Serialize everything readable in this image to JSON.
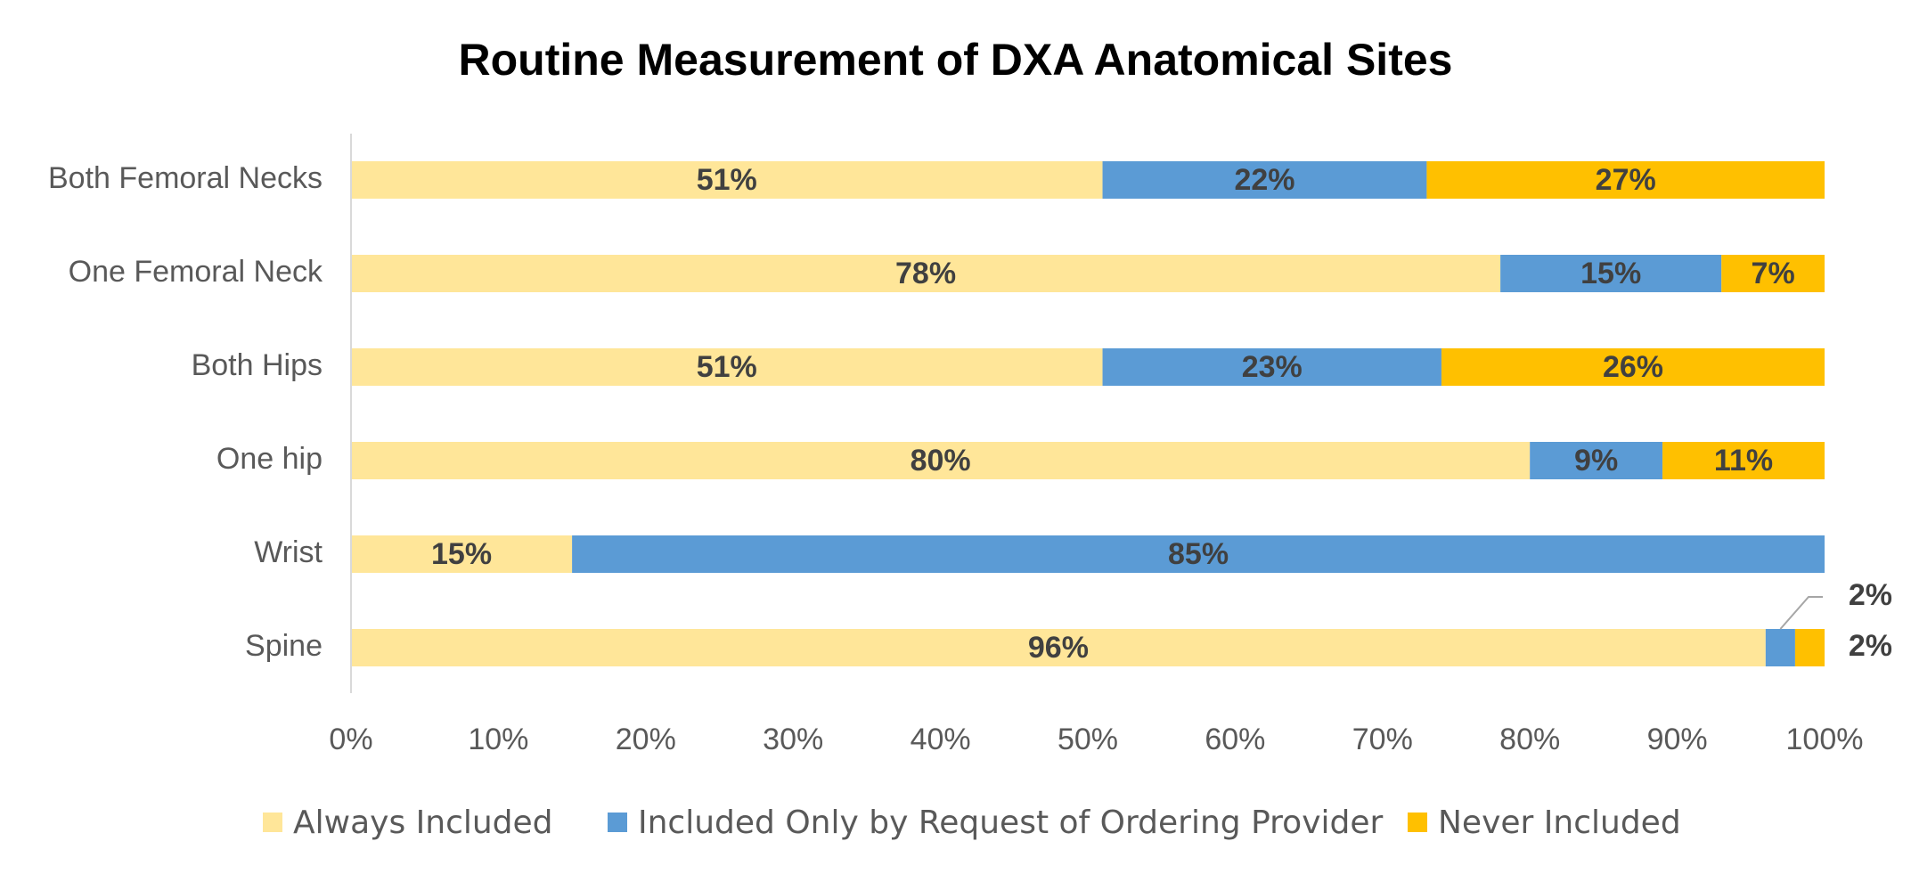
{
  "chart_data": {
    "type": "bar",
    "orientation": "horizontal",
    "stacked": true,
    "title": "Routine Measurement of DXA Anatomical Sites",
    "categories": [
      "Both Femoral Necks",
      "One Femoral Neck",
      "Both Hips",
      "One hip",
      "Wrist",
      "Spine"
    ],
    "series": [
      {
        "name": "Always Included",
        "color": "#FFE699",
        "values": [
          51,
          78,
          51,
          80,
          15,
          96
        ],
        "labels": [
          "51%",
          "78%",
          "51%",
          "80%",
          "15%",
          "96%"
        ]
      },
      {
        "name": "Included Only by Request of Ordering Provider",
        "color": "#5B9BD5",
        "values": [
          22,
          15,
          23,
          9,
          85,
          2
        ],
        "labels": [
          "22%",
          "15%",
          "23%",
          "9%",
          "85%",
          "2%"
        ]
      },
      {
        "name": "Never Included",
        "color": "#FFC000",
        "values": [
          27,
          7,
          26,
          11,
          0,
          2
        ],
        "labels": [
          "27%",
          "7%",
          "26%",
          "11%",
          "",
          "2%"
        ]
      }
    ],
    "xlim": [
      0,
      100
    ],
    "x_ticks": [
      "0%",
      "10%",
      "20%",
      "30%",
      "40%",
      "50%",
      "60%",
      "70%",
      "80%",
      "90%",
      "100%"
    ],
    "grid": false,
    "legend_position": "bottom"
  }
}
